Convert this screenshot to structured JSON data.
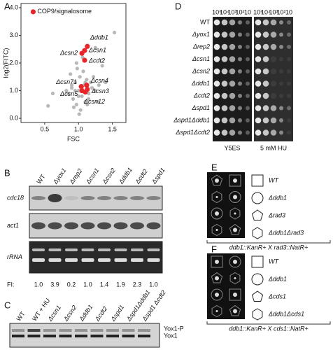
{
  "panel_letters": [
    "A",
    "B",
    "C",
    "D",
    "E",
    "F"
  ],
  "chart_data": {
    "type": "scatter",
    "x_label": "FSC",
    "y_label": "log2(FITC)",
    "xlim": [
      0.15,
      1.7
    ],
    "ylim": [
      -0.15,
      4.15
    ],
    "xticks": [
      {
        "value": 0.5,
        "label": "0.5"
      },
      {
        "value": 1,
        "label": "1.0"
      },
      {
        "value": 1.5,
        "label": "1.5"
      }
    ],
    "yticks": [
      {
        "value": 0,
        "label": "0.0"
      },
      {
        "value": 1,
        "label": "1.0"
      },
      {
        "value": 2,
        "label": "2.0"
      },
      {
        "value": 3,
        "label": "3.0"
      },
      {
        "value": 4,
        "label": "4.0"
      }
    ],
    "series": [
      {
        "color": "#b8b8b8",
        "x": [
          0.85,
          0.9,
          0.92,
          0.95,
          0.97,
          1.0,
          1.02,
          1.05,
          1.08,
          1.1,
          1.12,
          1.15,
          1.2,
          1.25,
          1.3,
          0.88,
          0.93,
          0.98,
          1.03,
          1.07,
          1.13,
          1.18,
          0.95,
          1.0,
          1.05,
          1.1,
          0.9,
          1.15,
          1.22,
          0.82,
          0.55,
          0.62,
          1.28,
          1.53,
          1.25,
          1.35,
          1.4,
          0.97,
          1.01,
          1.06
        ],
        "values": [
          0.9,
          1.1,
          0.7,
          1.3,
          0.5,
          1.0,
          1.5,
          0.8,
          1.2,
          0.6,
          1.4,
          0.9,
          1.1,
          1.0,
          1.2,
          1.6,
          0.4,
          1.8,
          0.3,
          1.7,
          0.5,
          1.3,
          1.0,
          0.8,
          1.1,
          1.3,
          1.2,
          0.7,
          1.5,
          1.0,
          0.45,
          0.9,
          0.6,
          3.1,
          2.55,
          1.9,
          1.3,
          2.0,
          0.15,
          2.2
        ]
      },
      {
        "color": "#e8262a",
        "x": [
          0.33,
          1.13,
          1.09,
          1.05,
          1.09,
          1.04,
          1.12,
          1.05,
          1.13,
          1.1
        ],
        "values": [
          3.85,
          2.6,
          2.45,
          2.35,
          2.1,
          1.15,
          1.2,
          1.0,
          1.05,
          0.95
        ],
        "point_labels": [
          "COP9/signalosome",
          "Δddb1",
          "Δcsn1",
          "Δcsn2",
          "Δcdt2",
          "Δcsn71",
          "Δcsn4",
          "Δcsn5",
          "Δcsn3",
          "Δcsn12"
        ]
      }
    ]
  },
  "blot_b": {
    "lanes": [
      "WT",
      "Δyox1",
      "Δrep2",
      "Δcsn1",
      "Δcsn2",
      "Δddb1",
      "Δcdt2",
      "Δspd1"
    ],
    "rows": [
      "cdc18",
      "act1",
      "rRNA"
    ],
    "fi_label": "FI:",
    "fi": [
      "1.0",
      "3.9",
      "0.2",
      "1.0",
      "1.4",
      "1.9",
      "2.3",
      "1.0"
    ]
  },
  "blot_c": {
    "lanes": [
      "WT",
      "WT + HU",
      "Δcsn1",
      "Δcsn2",
      "Δddb1",
      "Δcdt2",
      "Δspd1",
      "Δspd1Δddb1",
      "Δspd1 Δcdt2"
    ],
    "bands": [
      "Yox1-P",
      "Yox1"
    ]
  },
  "spot_d": {
    "dilutions": [
      "10⁵",
      "10⁴",
      "10³",
      "10²",
      "10"
    ],
    "strains": [
      "WT",
      "Δyox1",
      "Δrep2",
      "Δcsn1",
      "Δcsn2",
      "Δddb1",
      "Δcdt2",
      "Δspd1",
      "Δspd1Δddb1",
      "Δspd1Δcdt2"
    ],
    "conditions": [
      "Y5ES",
      "5 mM HU"
    ]
  },
  "tetrad_e": {
    "legend": [
      "WT",
      "Δddb1",
      "Δrad3",
      "Δddb1Δrad3"
    ],
    "cross": "ddb1::KanR+ X rad3::NatR+"
  },
  "tetrad_f": {
    "legend": [
      "WT",
      "Δddb1",
      "Δcds1",
      "Δddb1Δcds1"
    ],
    "cross": "ddb1::KanR+ X cds1::NatR+"
  }
}
